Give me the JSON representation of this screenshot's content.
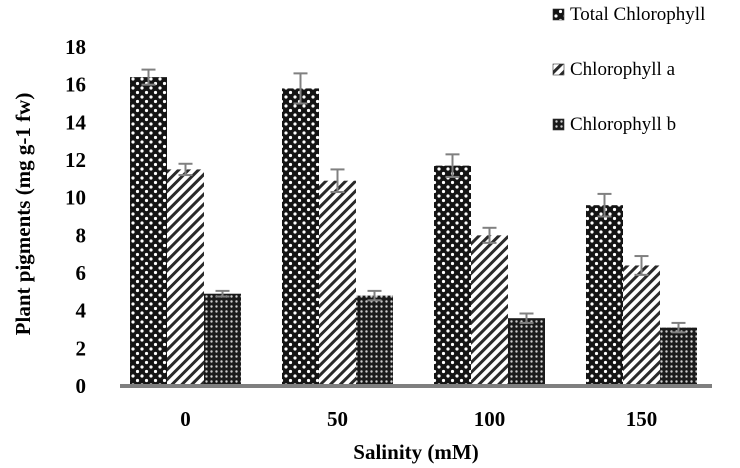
{
  "chart_data": {
    "type": "bar",
    "title": "",
    "xlabel": "Salinity (mM)",
    "ylabel": "Plant pigments (mg g-1 fw)",
    "categories": [
      "0",
      "50",
      "100",
      "150"
    ],
    "ylim": [
      0,
      18
    ],
    "yticks": [
      0,
      2,
      4,
      6,
      8,
      10,
      12,
      14,
      16,
      18
    ],
    "grid": false,
    "legend_position": "top-right",
    "series": [
      {
        "name": "Total Chlorophyll",
        "values": [
          16.4,
          15.8,
          11.7,
          9.6
        ],
        "errors": [
          0.4,
          0.8,
          0.6,
          0.6
        ],
        "pattern": "dots-on-dark"
      },
      {
        "name": "Chlorophyll a",
        "values": [
          11.5,
          10.9,
          8.0,
          6.4
        ],
        "errors": [
          0.3,
          0.6,
          0.4,
          0.5
        ],
        "pattern": "diagonal-stripes"
      },
      {
        "name": "Chlorophyll b",
        "values": [
          4.9,
          4.8,
          3.6,
          3.1
        ],
        "errors": [
          0.15,
          0.25,
          0.25,
          0.25
        ],
        "pattern": "dense-dots"
      }
    ],
    "colors": {
      "axis": "#7f7f7f",
      "error_bar": "#808080",
      "dark": "#111111"
    }
  }
}
